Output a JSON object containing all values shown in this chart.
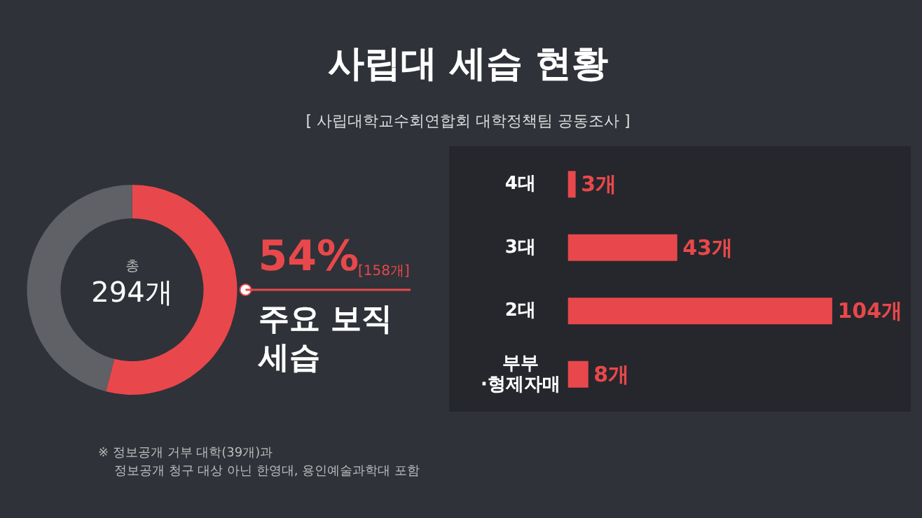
{
  "chart_data": [
    {
      "type": "donut",
      "title": "사립대 세습 현황",
      "subtitle": "[ 사립대학교수회연합회 대학정책팀 공동조사 ]",
      "categories": [
        null,
        null
      ],
      "values": [
        54,
        46
      ],
      "colors": [
        "#e8484b",
        "#5f6167"
      ],
      "annotations": [
        "총",
        "294개",
        "54%",
        "[158개]",
        "주요 보직\n세습",
        "※ 정보공개 거부 대학(39개)과\n    정보공개 청구 대상 아닌 한영대, 용인예술과학대 포함"
      ]
    },
    {
      "type": "bar",
      "orientation": "horizontal",
      "categories": [
        "4대",
        "3대",
        "2대",
        "부부\n·형제자매"
      ],
      "values": [
        3,
        43,
        104,
        8
      ],
      "color": "#e8484b",
      "value_labels": [
        "3개",
        "43개",
        "104개",
        "8개"
      ]
    }
  ]
}
